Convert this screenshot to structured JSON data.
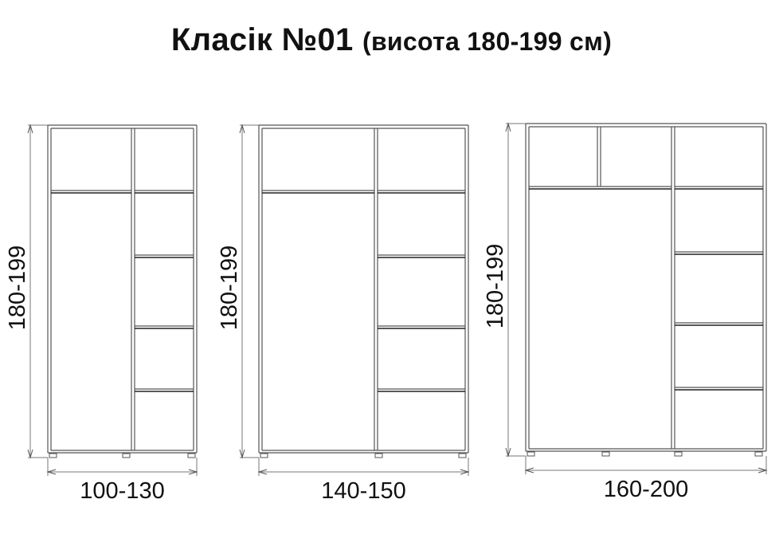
{
  "title": {
    "main": "Класік №01",
    "sub": "(висота 180-199 см)"
  },
  "wardrobes": [
    {
      "height_label": "180-199",
      "width_label": "100-130"
    },
    {
      "height_label": "180-199",
      "width_label": "140-150"
    },
    {
      "height_label": "180-199",
      "width_label": "160-200"
    }
  ],
  "colors": {
    "line": "#555555",
    "shelf": "#222222",
    "text": "#111111"
  }
}
